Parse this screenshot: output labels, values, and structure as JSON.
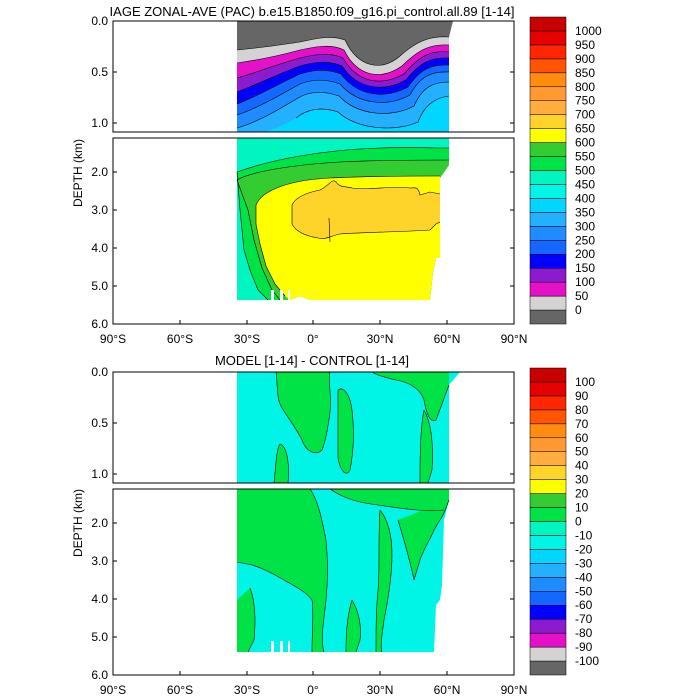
{
  "chart_data": [
    {
      "type": "heatmap",
      "title": "IAGE ZONAL-AVE (PAC) b.e15.B1850.f09_g16.pi_control.all.89 [1-14]",
      "ylabel": "DEPTH (km)",
      "xlabel": "",
      "x_ticks": [
        "90°S",
        "60°S",
        "30°S",
        "0°",
        "30°N",
        "60°N",
        "90°N"
      ],
      "x_tick_values": [
        -90,
        -60,
        -30,
        0,
        30,
        60,
        90
      ],
      "y_ticks_upper": [
        "0.0",
        "0.5",
        "1.0"
      ],
      "y_ticks_lower": [
        "2.0",
        "3.0",
        "4.0",
        "5.0",
        "6.0"
      ],
      "upper_ylim": [
        0,
        1.1
      ],
      "lower_ylim": [
        1.1,
        6.0
      ],
      "xlim": [
        -90,
        90
      ],
      "data_extent_lat": [
        -34,
        62
      ],
      "colorbar_levels": [
        "0",
        "50",
        "100",
        "150",
        "200",
        "250",
        "300",
        "350",
        "400",
        "450",
        "500",
        "550",
        "600",
        "650",
        "700",
        "750",
        "800",
        "850",
        "900",
        "950",
        "1000"
      ],
      "colorbar_colors": [
        "#666666",
        "#d3d3d3",
        "#e511c8",
        "#8c1acf",
        "#0000ff",
        "#1467ff",
        "#1e8cff",
        "#23b0ff",
        "#00d6ff",
        "#00f5e6",
        "#00f5c1",
        "#00e346",
        "#33cc33",
        "#ffff00",
        "#ffd42a",
        "#ffad3c",
        "#ff9930",
        "#ff8c0d",
        "#ff5400",
        "#ff2600",
        "#e60000",
        "#c80000"
      ],
      "regions_upper": [
        {
          "value": "0-50",
          "desc": "surface"
        },
        {
          "value": "50-100"
        },
        {
          "value": "100-150"
        },
        {
          "value": "150-200"
        },
        {
          "value": "200-250"
        },
        {
          "value": "250-300"
        },
        {
          "value": "300-350"
        },
        {
          "value": "350-400"
        },
        {
          "value": "400-450"
        },
        {
          "value": "450-500"
        },
        {
          "value": "500-550"
        }
      ],
      "regions_lower": [
        {
          "value": "500-550"
        },
        {
          "value": "550-600"
        },
        {
          "value": "600-650"
        },
        {
          "value": "650-700"
        }
      ]
    },
    {
      "type": "heatmap",
      "title": "MODEL [1-14] - CONTROL [1-14]",
      "ylabel": "DEPTH (km)",
      "xlabel": "",
      "x_ticks": [
        "90°S",
        "60°S",
        "30°S",
        "0°",
        "30°N",
        "60°N",
        "90°N"
      ],
      "x_tick_values": [
        -90,
        -60,
        -30,
        0,
        30,
        60,
        90
      ],
      "y_ticks_upper": [
        "0.0",
        "0.5",
        "1.0"
      ],
      "y_ticks_lower": [
        "2.0",
        "3.0",
        "4.0",
        "5.0",
        "6.0"
      ],
      "upper_ylim": [
        0,
        1.1
      ],
      "lower_ylim": [
        1.1,
        6.0
      ],
      "xlim": [
        -90,
        90
      ],
      "data_extent_lat": [
        -34,
        62
      ],
      "colorbar_levels": [
        "-100",
        "-90",
        "-80",
        "-70",
        "-60",
        "-50",
        "-40",
        "-30",
        "-20",
        "-10",
        "0",
        "10",
        "20",
        "30",
        "40",
        "50",
        "60",
        "70",
        "80",
        "90",
        "100"
      ],
      "colorbar_colors": [
        "#666666",
        "#d3d3d3",
        "#e511c8",
        "#8c1acf",
        "#0000ff",
        "#1467ff",
        "#1e8cff",
        "#23b0ff",
        "#00d6ff",
        "#00f5e6",
        "#00f5c1",
        "#00e346",
        "#33cc33",
        "#ffff00",
        "#ffd42a",
        "#ffad3c",
        "#ff9930",
        "#ff8c0d",
        "#ff5400",
        "#ff2600",
        "#e60000",
        "#c80000"
      ],
      "regions": [
        {
          "value": "-10-0",
          "desc": "background"
        },
        {
          "value": "0-10"
        }
      ]
    }
  ]
}
